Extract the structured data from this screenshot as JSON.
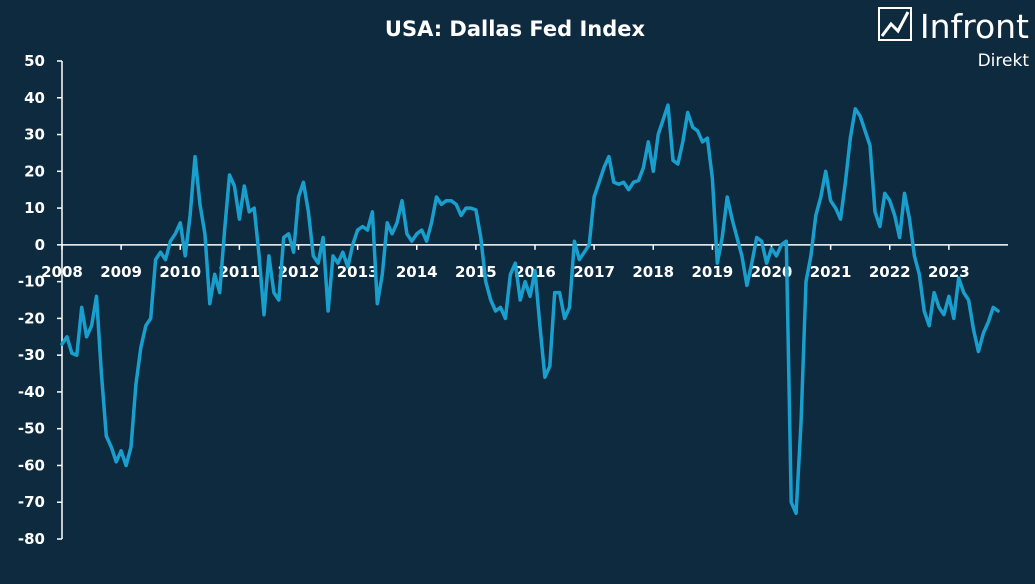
{
  "brand": {
    "name": "Infront",
    "sub": "Direkt"
  },
  "colors": {
    "background": "#0e2a3f",
    "line": "#199fcd",
    "axis": "#ffffff",
    "text": "#ffffff"
  },
  "chart_data": {
    "type": "line",
    "title": "USA: Dallas Fed Index",
    "xlabel": "",
    "ylabel": "",
    "ylim": [
      -80,
      50
    ],
    "yticks": [
      50,
      40,
      30,
      20,
      10,
      0,
      -10,
      -20,
      -30,
      -40,
      -50,
      -60,
      -70,
      -80
    ],
    "xlim": [
      "2008-01",
      "2023-12"
    ],
    "xtick_labels": [
      "2008",
      "2009",
      "2010",
      "2011",
      "2012",
      "2013",
      "2014",
      "2015",
      "2016",
      "2017",
      "2018",
      "2019",
      "2020",
      "2021",
      "2022",
      "2023"
    ],
    "grid": false,
    "legend": false,
    "series": [
      {
        "x_start": "2008-01",
        "frequency": "monthly",
        "values": [
          -27,
          -25,
          -29.5,
          -30,
          -17,
          -25,
          -22,
          -14,
          -35,
          -52,
          -55,
          -59,
          -56,
          -60,
          -55,
          -38,
          -28,
          -22,
          -20,
          -4,
          -2,
          -4,
          1,
          3,
          6,
          -3,
          8,
          24,
          11,
          3,
          -16,
          -8,
          -13,
          4,
          19,
          16,
          7,
          16,
          9,
          10,
          -3,
          -19,
          -3,
          -13,
          -15,
          2,
          3,
          -2,
          13,
          17,
          9,
          -3,
          -5,
          2,
          -18,
          -3,
          -5,
          -2,
          -6,
          0,
          4,
          5,
          4,
          9,
          -16,
          -8,
          6,
          3,
          6,
          12,
          3,
          1,
          3,
          4,
          1,
          6,
          13,
          11,
          12,
          12,
          11,
          8,
          10,
          10,
          9.5,
          2,
          -10,
          -15,
          -18,
          -17,
          -20,
          -8,
          -5,
          -15,
          -10,
          -14,
          -7,
          -22,
          -36,
          -33,
          -13,
          -13,
          -20,
          -17,
          1,
          -4,
          -2,
          0,
          13,
          17,
          21,
          24,
          17,
          16.5,
          17,
          15,
          17,
          17.5,
          21,
          28,
          20,
          30,
          34,
          38,
          23,
          22,
          28,
          36,
          32,
          31,
          28,
          29,
          18,
          -5,
          2,
          13,
          7,
          2,
          -3,
          -11,
          -5,
          2,
          1,
          -5,
          -1,
          -3,
          0,
          1,
          -70,
          -73,
          -48,
          -10,
          -3,
          8,
          13,
          20,
          12,
          10,
          7,
          17,
          29,
          37,
          35,
          31,
          27,
          9,
          5,
          14,
          12,
          8,
          2,
          14,
          7,
          -3,
          -8,
          -18,
          -22,
          -13,
          -17,
          -19,
          -14,
          -20,
          -9,
          -13,
          -15,
          -23,
          -29,
          -24,
          -21,
          -17,
          -18
        ]
      }
    ]
  }
}
